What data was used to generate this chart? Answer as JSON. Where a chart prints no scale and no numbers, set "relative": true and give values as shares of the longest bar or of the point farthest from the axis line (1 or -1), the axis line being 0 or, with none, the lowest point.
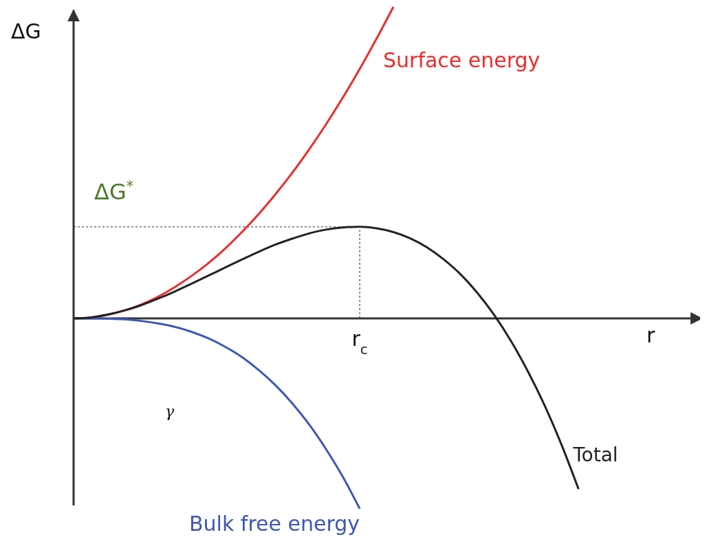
{
  "chart_data": {
    "type": "line",
    "relative": true,
    "xlabel": "r",
    "ylabel": "ΔG",
    "legend": false,
    "marker": "none",
    "line_style": "solid",
    "categories": [
      null,
      null,
      null,
      null,
      null,
      null,
      null,
      null,
      null,
      null,
      null,
      null,
      null,
      null,
      null,
      null,
      null,
      null,
      null,
      null,
      null,
      null,
      null,
      null,
      null,
      null,
      null,
      null,
      null,
      null,
      null
    ],
    "series": [
      {
        "name": "Surface energy",
        "color": "#ee2b2b",
        "values": [
          0,
          0.003,
          0.011,
          0.025,
          0.044,
          0.069,
          0.1,
          0.136,
          0.177,
          0.224,
          0.277,
          0.335,
          0.399,
          0.468,
          0.543,
          0.623,
          0.709,
          0.801,
          0.898,
          1,
          null,
          null,
          null,
          null,
          null,
          null,
          null,
          null,
          null,
          null,
          null
        ]
      },
      {
        "name": "Bulk free energy",
        "color": "#3c57b5",
        "values": [
          0,
          0,
          -0.001,
          -0.003,
          -0.008,
          -0.016,
          -0.027,
          -0.043,
          -0.064,
          -0.091,
          -0.124,
          -0.166,
          -0.215,
          -0.273,
          -0.341,
          -0.42,
          -0.509,
          -0.611,
          null,
          null,
          null,
          null,
          null,
          null,
          null,
          null,
          null,
          null,
          null,
          null,
          null
        ]
      },
      {
        "name": "Total",
        "color": "#222222",
        "values": [
          0,
          0.003,
          0.012,
          0.025,
          0.042,
          0.063,
          0.086,
          0.111,
          0.137,
          0.163,
          0.189,
          0.214,
          0.237,
          0.256,
          0.273,
          0.285,
          0.292,
          0.294,
          0.289,
          0.277,
          0.257,
          0.228,
          0.189,
          0.141,
          0.081,
          0.01,
          -0.074,
          -0.171,
          -0.281,
          -0.407,
          -0.548
        ]
      }
    ],
    "ref_lines": [
      {
        "axis": "y",
        "value": 0.294,
        "label": "ΔG$^{*}$",
        "line_style": "dotted"
      }
    ],
    "annotations": [
      "r$_{c}$",
      "γ"
    ]
  }
}
